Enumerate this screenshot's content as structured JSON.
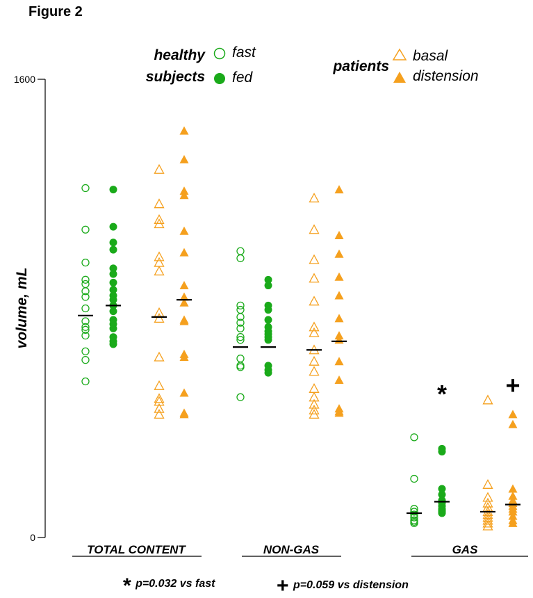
{
  "figure_label": "Figure 2",
  "legend": {
    "healthy_line1": "healthy",
    "healthy_line2": "subjects",
    "patients": "patients",
    "fast": "fast",
    "fed": "fed",
    "basal": "basal",
    "distension": "distension"
  },
  "footnotes": {
    "star_symbol": "*",
    "star_text": "p=0.032 vs fast",
    "plus_symbol": "+",
    "plus_text": "p=0.059 vs distension"
  },
  "colors": {
    "green": "#1aaa1a",
    "orange": "#f5a01e",
    "median": "#000000"
  },
  "chart_data": {
    "type": "scatter",
    "ylabel": "volume, mL",
    "ylim": [
      0,
      1600
    ],
    "yticks": [
      0,
      1600
    ],
    "categories": [
      "TOTAL CONTENT",
      "NON-GAS",
      "GAS"
    ],
    "series": [
      {
        "name": "fast",
        "group": "healthy subjects",
        "marker": "circle-open",
        "color": "#1aaa1a",
        "points": {
          "TOTAL CONTENT": [
            1220,
            1075,
            960,
            900,
            885,
            860,
            840,
            800,
            755,
            735,
            725,
            705,
            650,
            620,
            545
          ],
          "NON-GAS": [
            1000,
            975,
            810,
            795,
            770,
            750,
            730,
            700,
            690,
            625,
            600,
            595,
            490
          ],
          "GAS": [
            350,
            205,
            100,
            90,
            80,
            70,
            60,
            55,
            50
          ]
        },
        "median": {
          "TOTAL CONTENT": 775,
          "NON-GAS": 665,
          "GAS": 85
        }
      },
      {
        "name": "fed",
        "group": "healthy subjects",
        "marker": "circle-filled",
        "color": "#1aaa1a",
        "points": {
          "TOTAL CONTENT": [
            1215,
            1085,
            1030,
            1005,
            940,
            920,
            890,
            865,
            845,
            830,
            810,
            790,
            760,
            745,
            730,
            700,
            685,
            675
          ],
          "NON-GAS": [
            900,
            880,
            810,
            795,
            760,
            735,
            720,
            710,
            700,
            690,
            600,
            585,
            575
          ],
          "GAS": [
            310,
            300,
            170,
            150,
            130,
            120,
            110,
            100,
            95,
            90,
            85
          ]
        },
        "median": {
          "TOTAL CONTENT": 810,
          "NON-GAS": 665,
          "GAS": 125
        }
      },
      {
        "name": "basal",
        "group": "patients",
        "marker": "triangle-open",
        "color": "#f5a01e",
        "points": {
          "TOTAL CONTENT": [
            1285,
            1165,
            1110,
            1095,
            980,
            960,
            930,
            785,
            765,
            630,
            530,
            485,
            475,
            450,
            430
          ],
          "NON-GAS": [
            1185,
            1075,
            970,
            905,
            825,
            735,
            715,
            655,
            615,
            580,
            520,
            490,
            465,
            445,
            430
          ],
          "GAS": [
            480,
            185,
            140,
            120,
            105,
            90,
            80,
            70,
            60,
            50,
            40
          ]
        },
        "median": {
          "TOTAL CONTENT": 770,
          "NON-GAS": 655,
          "GAS": 90
        }
      },
      {
        "name": "distension",
        "group": "patients",
        "marker": "triangle-filled",
        "color": "#f5a01e",
        "points": {
          "TOTAL CONTENT": [
            1420,
            1320,
            1210,
            1195,
            1070,
            995,
            880,
            840,
            820,
            760,
            755,
            640,
            630,
            505,
            435,
            430
          ],
          "NON-GAS": [
            1215,
            1055,
            990,
            910,
            845,
            765,
            705,
            690,
            615,
            550,
            450,
            440,
            435
          ],
          "GAS": [
            430,
            395,
            170,
            145,
            130,
            120,
            110,
            100,
            90,
            75,
            60,
            50
          ]
        },
        "median": {
          "TOTAL CONTENT": 830,
          "NON-GAS": 685,
          "GAS": 115
        }
      }
    ],
    "annotations": [
      {
        "category": "GAS",
        "series": "fed",
        "symbol": "*",
        "value": 500
      },
      {
        "category": "GAS",
        "series": "distension",
        "symbol": "+",
        "value": 530
      }
    ]
  }
}
